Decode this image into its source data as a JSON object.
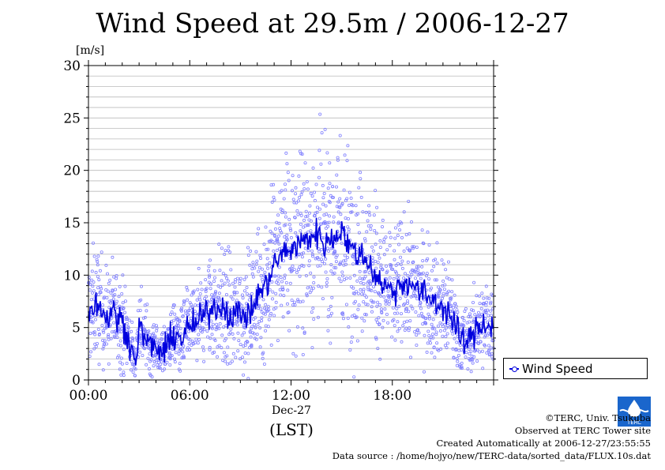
{
  "page": {
    "title": "Wind Speed at 29.5m / 2006-12-27",
    "footer": [
      "©TERC, Univ. Tsukuba",
      "Observed at TERC Tower site",
      "Created Automatically at 2006-12-27/23:55:55",
      "Data source : /home/hojyo/new/TERC-data/sorted_data/FLUX.10s.dat"
    ],
    "logo_text": "TERC",
    "colors": {
      "line": "#0000dd",
      "points": "#8080ff",
      "grid": "#bbbbbb"
    }
  },
  "chart_data": {
    "type": "line",
    "title": "Wind Speed at 29.5m / 2006-12-27",
    "ylabel": "[m/s]",
    "xlabel": "(LST)",
    "x_date_label": "Dec-27",
    "ylim": [
      0,
      30
    ],
    "yticks": [
      0,
      5,
      10,
      15,
      20,
      25,
      30
    ],
    "xlim": [
      "00:00",
      "24:00"
    ],
    "xticks": [
      "00:00",
      "06:00",
      "12:00",
      "18:00"
    ],
    "grid": true,
    "legend": {
      "position": "right",
      "entries": [
        "Wind Speed"
      ]
    },
    "series": [
      {
        "name": "Wind Speed",
        "style": "line-with-scatter",
        "x_hours": [
          0,
          0.5,
          1,
          1.5,
          2,
          2.5,
          2.75,
          3,
          3.5,
          4,
          4.5,
          5,
          5.5,
          6,
          6.5,
          7,
          7.5,
          8,
          8.5,
          9,
          9.5,
          10,
          10.5,
          11,
          11.5,
          12,
          12.5,
          13,
          13.5,
          14,
          14.5,
          15,
          15.5,
          16,
          16.5,
          17,
          17.5,
          18,
          18.5,
          19,
          19.5,
          20,
          20.5,
          21,
          21.5,
          22,
          22.5,
          23,
          23.5,
          24
        ],
        "values": [
          6.5,
          7.5,
          6.0,
          6.5,
          5.5,
          3.5,
          1.5,
          5.0,
          3.5,
          3.0,
          2.5,
          4.5,
          4.0,
          5.0,
          5.5,
          6.5,
          7.0,
          7.0,
          6.0,
          6.5,
          6.0,
          8.0,
          9.0,
          11.0,
          12.0,
          12.5,
          13.0,
          13.5,
          14.0,
          13.0,
          13.5,
          14.5,
          12.5,
          12.0,
          11.5,
          10.0,
          9.0,
          8.5,
          9.0,
          9.5,
          8.5,
          8.0,
          7.5,
          7.0,
          6.0,
          4.0,
          3.5,
          5.0,
          5.5,
          5.0
        ],
        "scatter_spread": [
          3.5,
          3.5,
          3.0,
          3.0,
          3.0,
          2.0,
          1.0,
          2.0,
          2.0,
          1.5,
          1.5,
          2.0,
          2.0,
          2.5,
          3.0,
          3.0,
          3.5,
          4.0,
          3.5,
          3.5,
          3.5,
          4.0,
          4.5,
          5.0,
          5.0,
          5.5,
          5.5,
          6.0,
          6.0,
          5.5,
          5.5,
          6.0,
          5.5,
          5.0,
          5.0,
          4.5,
          4.0,
          4.0,
          4.0,
          4.0,
          4.0,
          3.5,
          3.5,
          3.0,
          3.0,
          2.0,
          2.0,
          2.5,
          2.5,
          2.5
        ]
      }
    ]
  }
}
